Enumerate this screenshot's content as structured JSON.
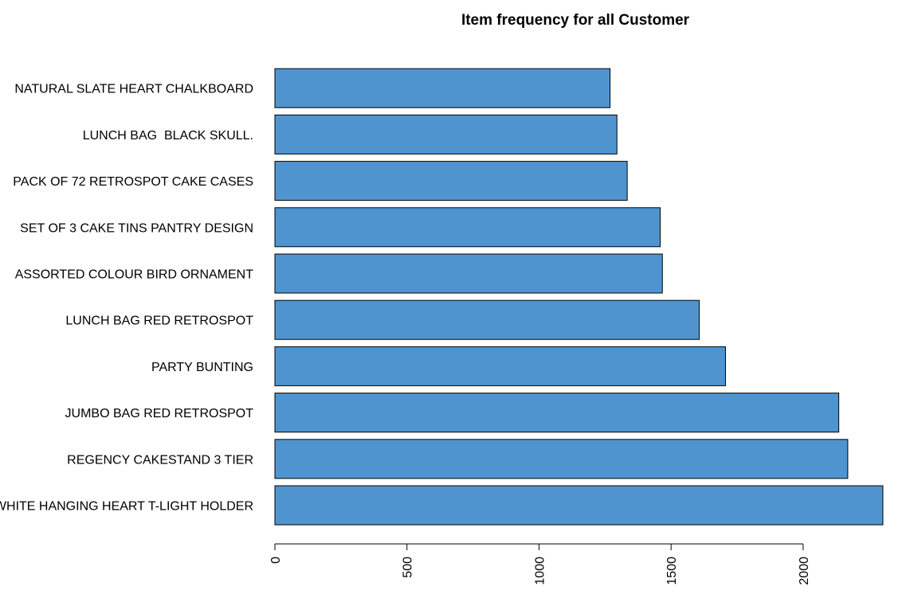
{
  "chart_data": {
    "type": "bar",
    "orientation": "horizontal",
    "title": "Item frequency for all Customer",
    "xlabel": "",
    "ylabel": "",
    "categories": [
      "WHITE HANGING HEART T-LIGHT HOLDER",
      "REGENCY CAKESTAND 3 TIER",
      "JUMBO BAG RED RETROSPOT",
      "PARTY BUNTING",
      "LUNCH BAG RED RETROSPOT",
      "ASSORTED COLOUR BIRD ORNAMENT",
      "SET OF 3 CAKE TINS PANTRY DESIGN",
      "PACK OF 72 RETROSPOT CAKE CASES",
      "LUNCH BAG  BLACK SKULL.",
      "NATURAL SLATE HEART CHALKBOARD"
    ],
    "values": [
      2302,
      2169,
      2135,
      1706,
      1607,
      1467,
      1459,
      1334,
      1295,
      1269
    ],
    "xlim": [
      0,
      2302
    ],
    "xticks": [
      0,
      500,
      1000,
      1500,
      2000
    ],
    "xtick_labels": [
      "0",
      "500",
      "1000",
      "1500",
      "2000"
    ],
    "bar_color": "#4F94CF",
    "grid": false,
    "legend": "none"
  }
}
